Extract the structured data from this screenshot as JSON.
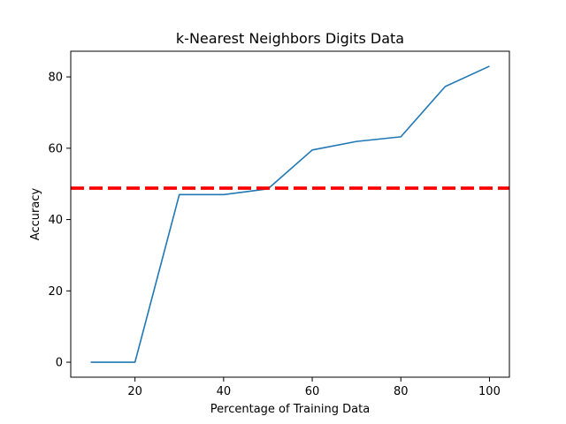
{
  "chart_data": {
    "type": "line",
    "title": "k-Nearest Neighbors Digits Data",
    "xlabel": "Percentage of Training Data",
    "ylabel": "Accuracy",
    "xlim": [
      5.5,
      104.5
    ],
    "ylim": [
      -4.2,
      87.2
    ],
    "xticks": [
      20,
      40,
      60,
      80,
      100
    ],
    "yticks": [
      0,
      20,
      40,
      60,
      80
    ],
    "grid": false,
    "series": [
      {
        "color": "#1f77b4",
        "x": [
          10,
          20,
          30,
          40,
          50,
          60,
          70,
          80,
          90,
          100
        ],
        "y": [
          0,
          0,
          47.0,
          47.0,
          48.6,
          59.5,
          61.9,
          63.2,
          77.3,
          83.0
        ]
      }
    ],
    "reference_line": {
      "orientation": "horizontal",
      "y": 48.8,
      "color": "#ff0000",
      "style": "dashed"
    }
  }
}
